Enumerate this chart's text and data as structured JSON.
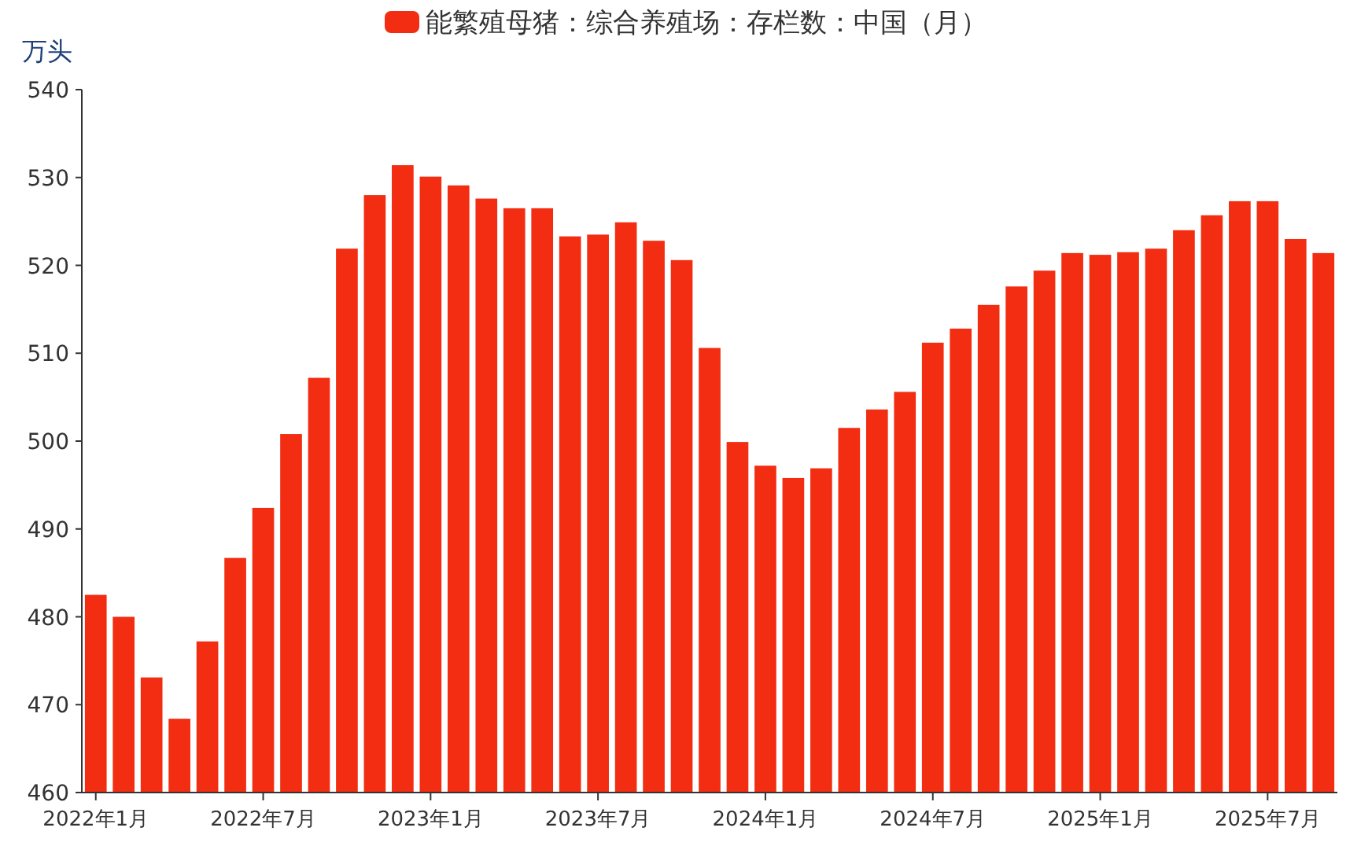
{
  "chart_data": {
    "type": "bar",
    "ylabel": "万头",
    "legend": "top",
    "categories": [
      "2022年1月",
      null,
      null,
      null,
      null,
      null,
      "2022年7月",
      null,
      null,
      null,
      null,
      null,
      "2023年1月",
      null,
      null,
      null,
      null,
      null,
      "2023年7月",
      null,
      null,
      null,
      null,
      null,
      "2024年1月",
      null,
      null,
      null,
      null,
      null,
      "2024年7月",
      null,
      null,
      null,
      null,
      null,
      "2025年1月",
      null,
      null,
      null,
      null,
      null,
      "2025年7月",
      null,
      null
    ],
    "series": [
      {
        "name": "能繁殖母猪：综合养殖场：存栏数：中国（月）",
        "color": "#f22d12",
        "values": [
          482.5,
          480.0,
          473.1,
          468.4,
          477.2,
          486.7,
          492.4,
          500.8,
          507.2,
          521.9,
          528.0,
          531.4,
          530.1,
          529.1,
          527.6,
          526.5,
          526.5,
          523.3,
          523.5,
          524.9,
          522.8,
          520.6,
          510.6,
          499.9,
          497.2,
          495.8,
          496.9,
          501.5,
          503.6,
          505.6,
          511.2,
          512.8,
          515.5,
          517.6,
          519.4,
          521.4,
          521.2,
          521.5,
          521.9,
          524.0,
          525.7,
          527.3,
          527.3,
          523.0,
          521.4
        ]
      }
    ],
    "ylim": [
      460,
      540
    ],
    "yticks": [
      460,
      470,
      480,
      490,
      500,
      510,
      520,
      530,
      540
    ],
    "grid": false
  }
}
